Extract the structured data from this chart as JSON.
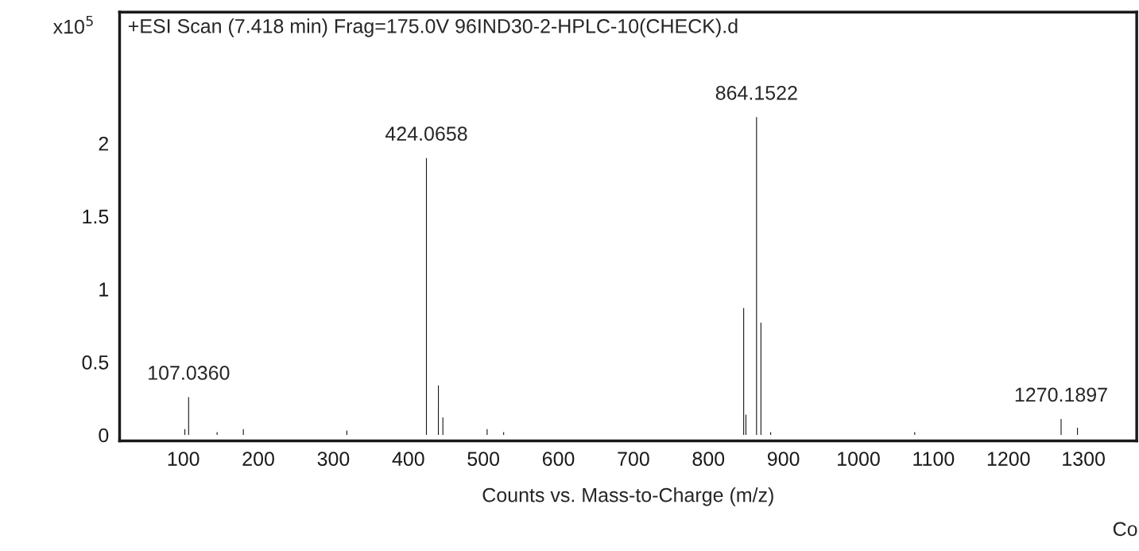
{
  "chart_data": {
    "type": "bar",
    "title": "+ESI Scan (7.418 min) Frag=175.0V 96IND30-2-HPLC-10(CHECK).d",
    "xlabel": "Counts vs. Mass-to-Charge (m/z)",
    "ylabel": "x10$^{5}$",
    "x": [
      102,
      107.036,
      145,
      180,
      318,
      424.0658,
      440,
      446,
      505,
      527,
      847,
      850,
      864.1522,
      870,
      883,
      1075,
      1270.1897,
      1292
    ],
    "values": [
      0.04,
      0.26,
      0.02,
      0.04,
      0.03,
      1.9,
      0.34,
      0.12,
      0.04,
      0.02,
      0.87,
      0.14,
      2.18,
      0.77,
      0.02,
      0.02,
      0.11,
      0.05
    ],
    "color": "#1a1a1a",
    "xlim": [
      15,
      1371
    ],
    "ylim": [
      -0.04,
      2.9
    ],
    "xticks": [
      100,
      200,
      300,
      400,
      500,
      600,
      700,
      800,
      900,
      1000,
      1100,
      1200,
      1300
    ],
    "yticks": [
      0,
      0.5,
      1,
      1.5,
      2
    ],
    "grid": false,
    "legend": false,
    "annotations": [
      {
        "text": "107.0360",
        "x": 107.036,
        "y": 0.26
      },
      {
        "text": "424.0658",
        "x": 424.0658,
        "y": 1.9
      },
      {
        "text": "864.1522",
        "x": 864.1522,
        "y": 2.18
      },
      {
        "text": "1270.1897",
        "x": 1270.1897,
        "y": 0.11
      },
      "Co"
    ]
  }
}
